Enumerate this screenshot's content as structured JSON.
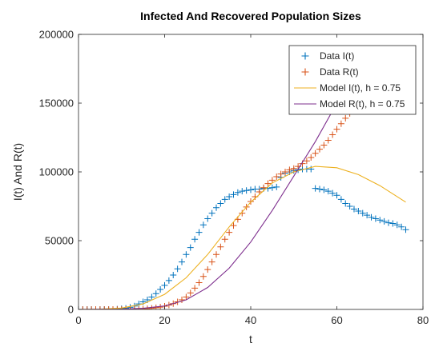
{
  "chart_data": {
    "type": "scatter",
    "title": "Infected And Recovered Population Sizes",
    "xlabel": "t",
    "ylabel": "I(t) And R(t)",
    "xlim": [
      0,
      80
    ],
    "ylim": [
      0,
      200000
    ],
    "xticks": [
      0,
      20,
      40,
      60,
      80
    ],
    "yticks": [
      0,
      50000,
      100000,
      150000,
      200000
    ],
    "grid": false,
    "legend_position": "top-right",
    "series": [
      {
        "name": "Data I(t)",
        "kind": "marker",
        "marker": "+",
        "color": "#0072BD",
        "x": [
          1,
          2,
          3,
          4,
          5,
          6,
          7,
          8,
          9,
          10,
          11,
          12,
          13,
          14,
          15,
          16,
          17,
          18,
          19,
          20,
          21,
          22,
          23,
          24,
          25,
          26,
          27,
          28,
          29,
          30,
          31,
          32,
          33,
          34,
          35,
          36,
          37,
          38,
          39,
          40,
          41,
          42,
          43,
          44,
          45,
          46,
          47,
          48,
          49,
          50,
          51,
          52,
          53,
          54,
          55,
          56,
          57,
          58,
          59,
          60,
          61,
          62,
          63,
          64,
          65,
          66,
          67,
          68,
          69,
          70,
          71,
          72,
          73,
          74,
          75,
          76
        ],
        "y": [
          0,
          0,
          0,
          0,
          0,
          0,
          0,
          0,
          200,
          500,
          800,
          1500,
          2500,
          4000,
          5500,
          7000,
          9000,
          11500,
          14500,
          17500,
          21000,
          25000,
          29500,
          34500,
          40000,
          45000,
          51000,
          56000,
          61500,
          66000,
          70000,
          74000,
          77000,
          80000,
          82000,
          83500,
          85000,
          86000,
          86500,
          87000,
          87500,
          87500,
          88000,
          88000,
          88500,
          89000,
          96000,
          99000,
          100000,
          101000,
          101500,
          102000,
          102000,
          102000,
          88000,
          87500,
          87000,
          86000,
          84500,
          83000,
          80000,
          77000,
          75000,
          73000,
          71500,
          70000,
          68500,
          67000,
          66000,
          65000,
          64000,
          63000,
          62500,
          61500,
          60000,
          58000
        ]
      },
      {
        "name": "Data R(t)",
        "kind": "marker",
        "marker": "+",
        "color": "#D95319",
        "x": [
          1,
          2,
          3,
          4,
          5,
          6,
          7,
          8,
          9,
          10,
          11,
          12,
          13,
          14,
          15,
          16,
          17,
          18,
          19,
          20,
          21,
          22,
          23,
          24,
          25,
          26,
          27,
          28,
          29,
          30,
          31,
          32,
          33,
          34,
          35,
          36,
          37,
          38,
          39,
          40,
          41,
          42,
          43,
          44,
          45,
          46,
          47,
          48,
          49,
          50,
          51,
          52,
          53,
          54,
          55,
          56,
          57,
          58,
          59,
          60,
          61,
          62,
          63,
          64
        ],
        "y": [
          0,
          0,
          0,
          0,
          0,
          0,
          0,
          0,
          0,
          0,
          0,
          0,
          0,
          0,
          200,
          500,
          800,
          1200,
          1700,
          2300,
          3200,
          4200,
          5500,
          7000,
          9000,
          12000,
          15500,
          19500,
          24000,
          29000,
          34500,
          40000,
          45500,
          51000,
          56000,
          61000,
          65500,
          70000,
          74500,
          78500,
          82000,
          85500,
          88500,
          91500,
          94000,
          96500,
          98500,
          100000,
          101500,
          102500,
          104000,
          106000,
          108000,
          110500,
          113500,
          116500,
          119500,
          123000,
          127000,
          131000,
          135000,
          139000,
          142500,
          146000
        ]
      },
      {
        "name": "Model I(t), h = 0.75",
        "kind": "line",
        "color": "#EDB120",
        "x": [
          0,
          5,
          10,
          15,
          20,
          25,
          30,
          35,
          40,
          45,
          50,
          55,
          60,
          65,
          70,
          76
        ],
        "y": [
          0,
          200,
          1000,
          4000,
          11000,
          23000,
          40000,
          60000,
          78000,
          92000,
          100000,
          104000,
          103000,
          98000,
          90000,
          78000
        ]
      },
      {
        "name": "Model R(t), h = 0.75",
        "kind": "line",
        "color": "#7E2F8E",
        "x": [
          0,
          10,
          15,
          20,
          25,
          30,
          35,
          40,
          45,
          50,
          55,
          60,
          64.5
        ],
        "y": [
          0,
          200,
          800,
          2500,
          7000,
          16000,
          30000,
          49000,
          72000,
          97000,
          122000,
          150000,
          174000
        ]
      }
    ]
  }
}
